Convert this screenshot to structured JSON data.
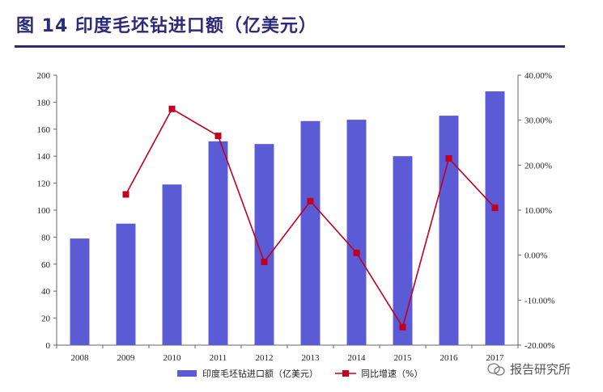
{
  "title": "图 14 印度毛坯钻进口额（亿美元）",
  "watermark_text": "报告研究所",
  "colors": {
    "bar": "#5b5bd6",
    "line": "#c00020",
    "title": "#2c2a7a"
  },
  "chart_data": {
    "type": "bar",
    "categories": [
      "2008",
      "2009",
      "2010",
      "2011",
      "2012",
      "2013",
      "2014",
      "2015",
      "2016",
      "2017"
    ],
    "series": [
      {
        "name": "印度毛坯钻进口额（亿美元）",
        "type": "bar",
        "axis": "left",
        "values": [
          79,
          90,
          119,
          151,
          149,
          166,
          167,
          140,
          170,
          188
        ]
      },
      {
        "name": "同比增速（%）",
        "type": "line",
        "axis": "right",
        "values": [
          null,
          13.5,
          32.5,
          26.5,
          -1.5,
          12,
          0.5,
          -16,
          21.5,
          10.5
        ]
      }
    ],
    "ylim_left": [
      0,
      200
    ],
    "yticks_left": [
      "0",
      "20",
      "40",
      "60",
      "80",
      "100",
      "120",
      "140",
      "160",
      "180",
      "200"
    ],
    "ylim_right": [
      -20,
      40
    ],
    "yticks_right": [
      "-20.00%",
      "-10.00%",
      "0.00%",
      "10.00%",
      "20.00%",
      "30.00%",
      "40.00%"
    ],
    "grid": false,
    "legend_position": "bottom"
  }
}
